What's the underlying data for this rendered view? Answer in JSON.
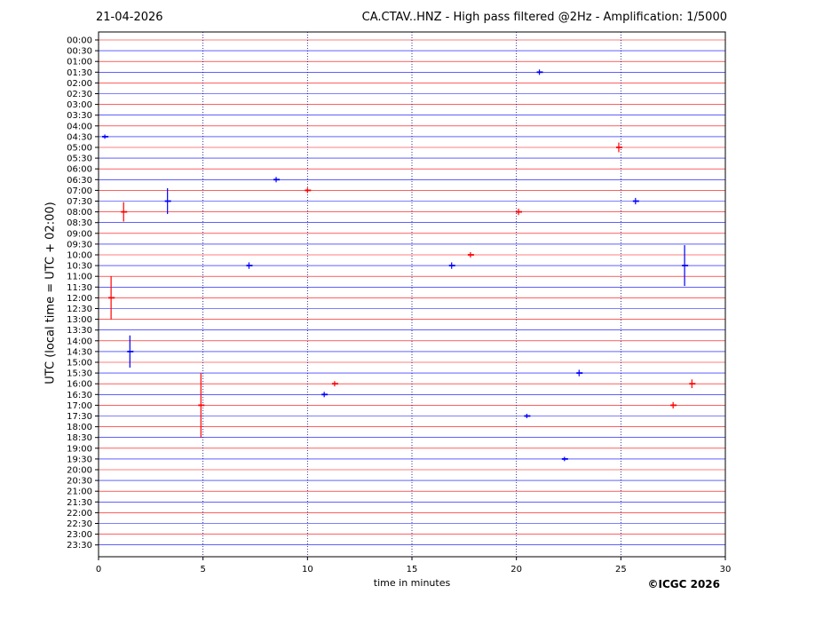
{
  "header": {
    "date": "21-04-2026",
    "title": "CA.CTAV..HNZ - High pass filtered @2Hz - Amplification: 1/5000"
  },
  "footer": {
    "copyright": "©ICGC 2026"
  },
  "chart_data": {
    "type": "line",
    "title": "CA.CTAV..HNZ - High pass filtered @2Hz - Amplification: 1/5000",
    "xlabel": "time in minutes",
    "ylabel": "UTC (local time = UTC + 02:00)",
    "xlim": [
      0,
      30
    ],
    "xticks": [
      0,
      5,
      10,
      15,
      20,
      25,
      30
    ],
    "grid": "vertical dotted at 5-minute ticks",
    "colors": {
      "even_rows": "#ff0000",
      "odd_rows": "#0000ff",
      "grid": "#00007a"
    },
    "rows": [
      "00:00",
      "00:30",
      "01:00",
      "01:30",
      "02:00",
      "02:30",
      "03:00",
      "03:30",
      "04:00",
      "04:30",
      "05:00",
      "05:30",
      "06:00",
      "06:30",
      "07:00",
      "07:30",
      "08:00",
      "08:30",
      "09:00",
      "09:30",
      "10:00",
      "10:30",
      "11:00",
      "11:30",
      "12:00",
      "12:30",
      "13:00",
      "13:30",
      "14:00",
      "14:30",
      "15:00",
      "15:30",
      "16:00",
      "16:30",
      "17:00",
      "17:30",
      "18:00",
      "18:30",
      "19:00",
      "19:30",
      "20:00",
      "20:30",
      "21:00",
      "21:30",
      "22:00",
      "22:30",
      "23:00",
      "23:30"
    ],
    "events": [
      {
        "row": "01:30",
        "minute": 21.1,
        "amplitude": 0.25
      },
      {
        "row": "04:30",
        "minute": 0.3,
        "amplitude": 0.2
      },
      {
        "row": "05:00",
        "minute": 24.9,
        "amplitude": 0.45
      },
      {
        "row": "06:30",
        "minute": 8.5,
        "amplitude": 0.25
      },
      {
        "row": "07:00",
        "minute": 10.0,
        "amplitude": 0.25
      },
      {
        "row": "07:30",
        "minute": 3.3,
        "amplitude": 1.2
      },
      {
        "row": "07:30",
        "minute": 25.7,
        "amplitude": 0.3
      },
      {
        "row": "08:00",
        "minute": 1.2,
        "amplitude": 0.9
      },
      {
        "row": "08:00",
        "minute": 20.1,
        "amplitude": 0.3
      },
      {
        "row": "10:00",
        "minute": 17.8,
        "amplitude": 0.25
      },
      {
        "row": "10:30",
        "minute": 7.2,
        "amplitude": 0.3
      },
      {
        "row": "10:30",
        "minute": 16.9,
        "amplitude": 0.3
      },
      {
        "row": "10:30",
        "minute": 28.05,
        "amplitude": 1.9
      },
      {
        "row": "12:00",
        "minute": 0.6,
        "amplitude": 2.0
      },
      {
        "row": "14:30",
        "minute": 1.5,
        "amplitude": 1.5
      },
      {
        "row": "15:30",
        "minute": 23.0,
        "amplitude": 0.3
      },
      {
        "row": "16:00",
        "minute": 11.3,
        "amplitude": 0.25
      },
      {
        "row": "16:00",
        "minute": 28.4,
        "amplitude": 0.4
      },
      {
        "row": "16:30",
        "minute": 10.8,
        "amplitude": 0.25
      },
      {
        "row": "17:00",
        "minute": 4.9,
        "amplitude": 3.0
      },
      {
        "row": "17:00",
        "minute": 27.5,
        "amplitude": 0.3
      },
      {
        "row": "17:30",
        "minute": 20.5,
        "amplitude": 0.2
      },
      {
        "row": "19:30",
        "minute": 22.3,
        "amplitude": 0.2
      }
    ]
  }
}
